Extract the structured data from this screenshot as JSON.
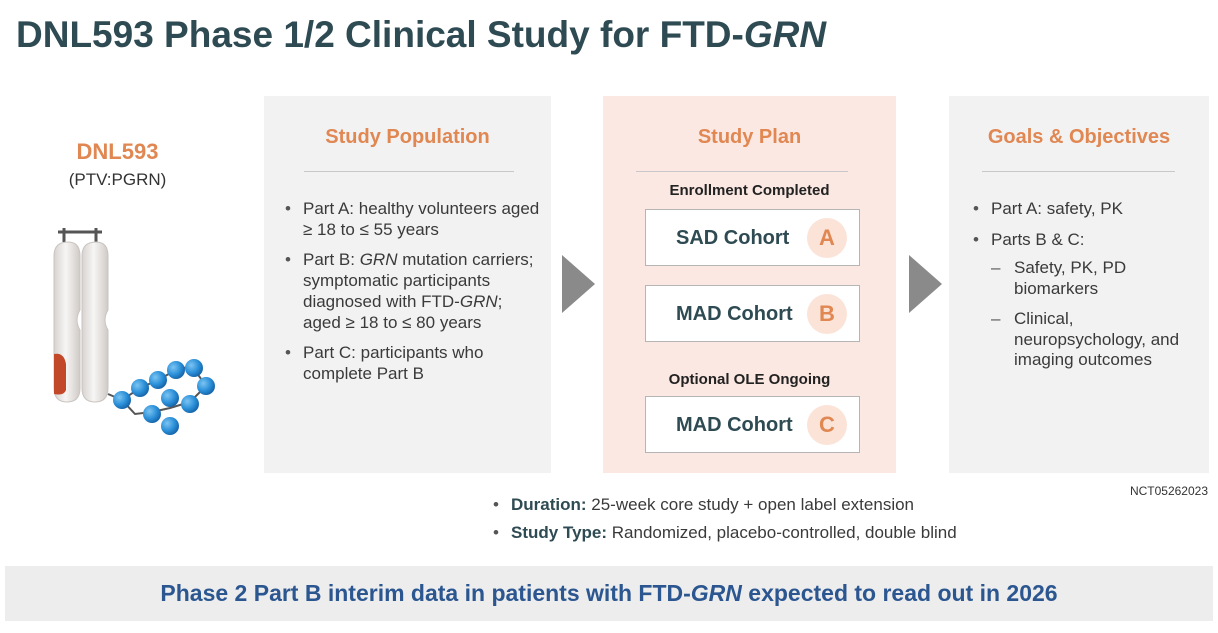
{
  "header": {
    "title_prefix": "DNL593 Phase 1/2 Clinical Study for FTD-",
    "title_italic": "GRN"
  },
  "drug": {
    "name": "DNL593",
    "subtitle": "(PTV:PGRN)",
    "illustration_icon": "antibody-transport-vehicle-molecule-icon",
    "colors": {
      "molecule_body": "#ece9e6",
      "accent": "#c2482a",
      "bead": "#2a8fd8",
      "chain": "#555555"
    }
  },
  "panels": {
    "population": {
      "title": "Study Population",
      "parts": {
        "a": {
          "text": "Part A: healthy volunteers aged ≥ 18 to ≤ 55 years"
        },
        "b": {
          "pre": "Part B: ",
          "italic1": "GRN",
          "mid": " mutation carriers; symptomatic participants diagnosed with FTD-",
          "italic2": "GRN",
          "post": "; aged ≥ 18 to ≤ 80 years"
        },
        "c": {
          "text": "Part C: participants who complete Part B"
        }
      }
    },
    "plan": {
      "title": "Study Plan",
      "enrollment_label": "Enrollment Completed",
      "ole_label": "Optional OLE Ongoing",
      "cohorts": [
        {
          "label": "SAD Cohort",
          "letter": "A"
        },
        {
          "label": "MAD Cohort",
          "letter": "B"
        },
        {
          "label": "MAD Cohort",
          "letter": "C"
        }
      ]
    },
    "goals": {
      "title": "Goals & Objectives",
      "items": [
        "Part A: safety, PK",
        "Parts B & C:"
      ],
      "sub_items": [
        "Safety, PK, PD biomarkers",
        "Clinical, neuropsychology, and imaging outcomes"
      ]
    }
  },
  "arrows": {
    "icon": "chevron-right-arrow-icon",
    "color": "#8a8a8a"
  },
  "nct_id": "NCT05262023",
  "summary": {
    "duration_label": "Duration:",
    "duration_value": " 25-week core study + open label extension",
    "type_label": "Study Type:",
    "type_value": " Randomized, placebo-controlled, double blind"
  },
  "banner": {
    "prefix": "Phase 2 Part B interim data in patients with FTD-",
    "italic": "GRN",
    "suffix": " expected to read out in 2026"
  },
  "colors": {
    "title": "#2e4a52",
    "accent_orange": "#e08752",
    "banner_text": "#2b5690",
    "panel_gray": "#f2f2f2",
    "panel_pink": "#fbe8e2"
  }
}
